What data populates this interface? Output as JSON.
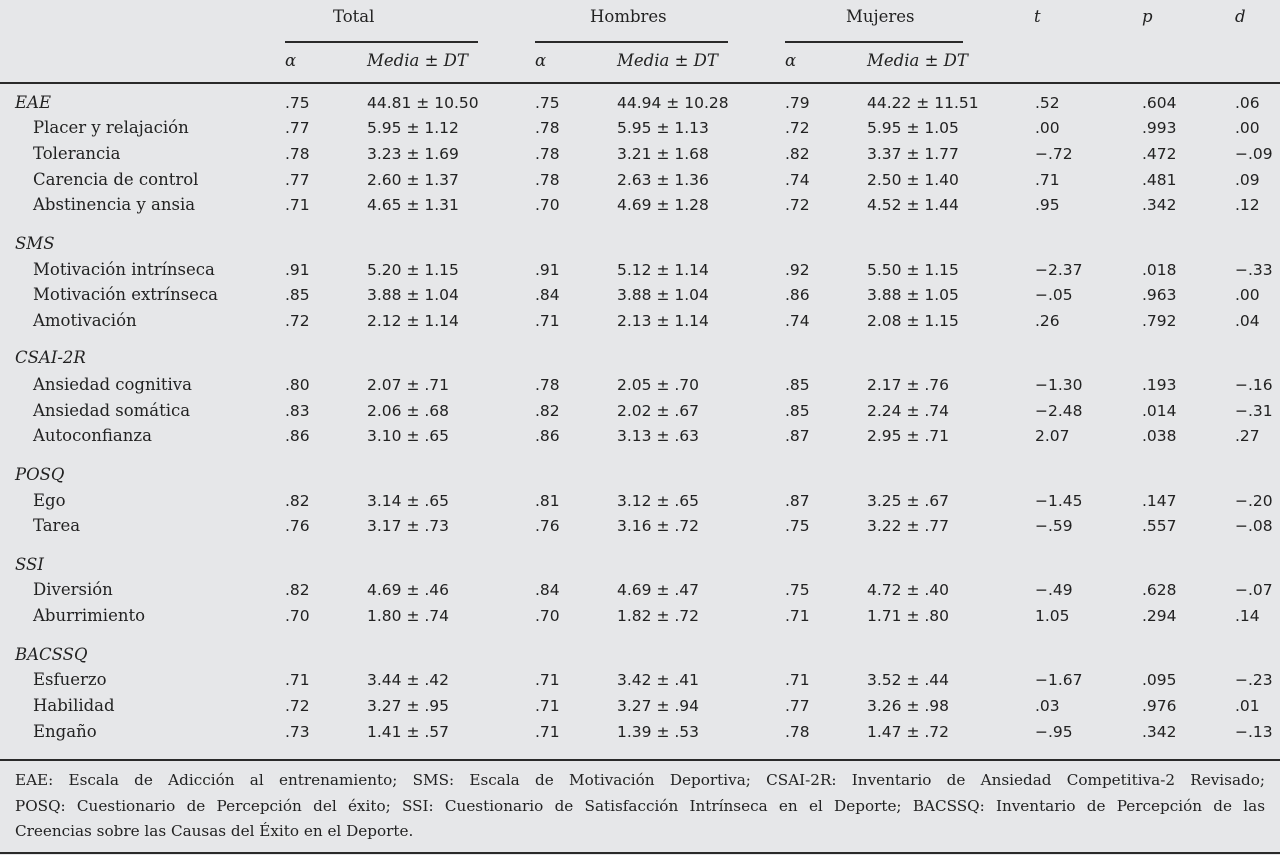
{
  "header": {
    "groups": [
      {
        "label": "Total",
        "alpha": "α",
        "media": "Media ± DT"
      },
      {
        "label": "Hombres",
        "alpha": "α",
        "media": "Media ± DT"
      },
      {
        "label": "Mujeres",
        "alpha": "α",
        "media": "Media ± DT"
      }
    ],
    "t": "t",
    "p": "p",
    "d": "d"
  },
  "sections": [
    {
      "scale": "EAE",
      "total_alpha": ".75",
      "total_media": "44.81 ± 10.50",
      "h_alpha": ".75",
      "h_media": "44.94 ± 10.28",
      "m_alpha": ".79",
      "m_media": "44.22 ± 11.51",
      "t": ".52",
      "p": ".604",
      "d": ".06",
      "rows": [
        {
          "label": "Placer y relajación",
          "total_alpha": ".77",
          "total_media": "5.95 ± 1.12",
          "h_alpha": ".78",
          "h_media": "5.95 ± 1.13",
          "m_alpha": ".72",
          "m_media": "5.95 ± 1.05",
          "t": ".00",
          "p": ".993",
          "d": ".00"
        },
        {
          "label": "Tolerancia",
          "total_alpha": ".78",
          "total_media": "3.23 ± 1.69",
          "h_alpha": ".78",
          "h_media": "3.21 ± 1.68",
          "m_alpha": ".82",
          "m_media": "3.37 ± 1.77",
          "t": "−.72",
          "p": ".472",
          "d": "−.09"
        },
        {
          "label": "Carencia de control",
          "total_alpha": ".77",
          "total_media": "2.60 ± 1.37",
          "h_alpha": ".78",
          "h_media": "2.63 ± 1.36",
          "m_alpha": ".74",
          "m_media": "2.50 ± 1.40",
          "t": ".71",
          "p": ".481",
          "d": ".09"
        },
        {
          "label": "Abstinencia y ansia",
          "total_alpha": ".71",
          "total_media": "4.65 ± 1.31",
          "h_alpha": ".70",
          "h_media": "4.69 ± 1.28",
          "m_alpha": ".72",
          "m_media": "4.52 ± 1.44",
          "t": ".95",
          "p": ".342",
          "d": ".12"
        }
      ]
    },
    {
      "scale": "SMS",
      "rows": [
        {
          "label": "Motivación intrínseca",
          "total_alpha": ".91",
          "total_media": "5.20 ± 1.15",
          "h_alpha": ".91",
          "h_media": "5.12 ± 1.14",
          "m_alpha": ".92",
          "m_media": "5.50 ± 1.15",
          "t": "−2.37",
          "p": ".018",
          "d": "−.33"
        },
        {
          "label": "Motivación extrínseca",
          "total_alpha": ".85",
          "total_media": "3.88 ± 1.04",
          "h_alpha": ".84",
          "h_media": "3.88 ± 1.04",
          "m_alpha": ".86",
          "m_media": "3.88 ± 1.05",
          "t": "−.05",
          "p": ".963",
          "d": ".00"
        },
        {
          "label": "Amotivación",
          "total_alpha": ".72",
          "total_media": "2.12 ± 1.14",
          "h_alpha": ".71",
          "h_media": "2.13 ± 1.14",
          "m_alpha": ".74",
          "m_media": "2.08 ± 1.15",
          "t": ".26",
          "p": ".792",
          "d": ".04"
        }
      ]
    },
    {
      "scale": "CSAI-2R",
      "rows": [
        {
          "label": "Ansiedad cognitiva",
          "total_alpha": ".80",
          "total_media": "2.07 ± .71",
          "h_alpha": ".78",
          "h_media": "2.05 ± .70",
          "m_alpha": ".85",
          "m_media": "2.17 ± .76",
          "t": "−1.30",
          "p": ".193",
          "d": "−.16"
        },
        {
          "label": "Ansiedad somática",
          "total_alpha": ".83",
          "total_media": "2.06 ± .68",
          "h_alpha": ".82",
          "h_media": "2.02 ± .67",
          "m_alpha": ".85",
          "m_media": "2.24 ± .74",
          "t": "−2.48",
          "p": ".014",
          "d": "−.31"
        },
        {
          "label": "Autoconfianza",
          "total_alpha": ".86",
          "total_media": "3.10 ± .65",
          "h_alpha": ".86",
          "h_media": "3.13 ± .63",
          "m_alpha": ".87",
          "m_media": "2.95 ± .71",
          "t": "2.07",
          "p": ".038",
          "d": ".27"
        }
      ]
    },
    {
      "scale": "POSQ",
      "rows": [
        {
          "label": "Ego",
          "total_alpha": ".82",
          "total_media": "3.14 ± .65",
          "h_alpha": ".81",
          "h_media": "3.12 ± .65",
          "m_alpha": ".87",
          "m_media": "3.25 ± .67",
          "t": "−1.45",
          "p": ".147",
          "d": "−.20"
        },
        {
          "label": "Tarea",
          "total_alpha": ".76",
          "total_media": "3.17 ± .73",
          "h_alpha": ".76",
          "h_media": "3.16 ± .72",
          "m_alpha": ".75",
          "m_media": "3.22 ± .77",
          "t": "−.59",
          "p": ".557",
          "d": "−.08"
        }
      ]
    },
    {
      "scale": "SSI",
      "rows": [
        {
          "label": "Diversión",
          "total_alpha": ".82",
          "total_media": "4.69 ± .46",
          "h_alpha": ".84",
          "h_media": "4.69 ± .47",
          "m_alpha": ".75",
          "m_media": "4.72 ± .40",
          "t": "−.49",
          "p": ".628",
          "d": "−.07"
        },
        {
          "label": "Aburrimiento",
          "total_alpha": ".70",
          "total_media": "1.80 ± .74",
          "h_alpha": ".70",
          "h_media": "1.82 ± .72",
          "m_alpha": ".71",
          "m_media": "1.71 ± .80",
          "t": "1.05",
          "p": ".294",
          "d": ".14"
        }
      ]
    },
    {
      "scale": "BACSSQ",
      "rows": [
        {
          "label": "Esfuerzo",
          "total_alpha": ".71",
          "total_media": "3.44 ± .42",
          "h_alpha": ".71",
          "h_media": "3.42 ± .41",
          "m_alpha": ".71",
          "m_media": "3.52 ± .44",
          "t": "−1.67",
          "p": ".095",
          "d": "−.23"
        },
        {
          "label": "Habilidad",
          "total_alpha": ".72",
          "total_media": "3.27 ± .95",
          "h_alpha": ".71",
          "h_media": "3.27 ± .94",
          "m_alpha": ".77",
          "m_media": "3.26 ± .98",
          "t": ".03",
          "p": ".976",
          "d": ".01"
        },
        {
          "label": "Engaño",
          "total_alpha": ".73",
          "total_media": "1.41 ± .57",
          "h_alpha": ".71",
          "h_media": "1.39 ± .53",
          "m_alpha": ".78",
          "m_media": "1.47 ± .72",
          "t": "−.95",
          "p": ".342",
          "d": "−.13"
        }
      ]
    }
  ],
  "footnote": {
    "line1": "EAE: Escala de Adicción al entrenamiento; SMS: Escala de Motivación Deportiva; CSAI-2R: Inventario de Ansiedad Competitiva-2 Revisado;",
    "line2": "POSQ: Cuestionario de Percepción del éxito; SSI: Cuestionario de Satisfacción Intrínseca en el Deporte; BACSSQ: Inventario de Percepción de las",
    "line3": "Creencias sobre las Causas del Éxito en el Deporte."
  }
}
